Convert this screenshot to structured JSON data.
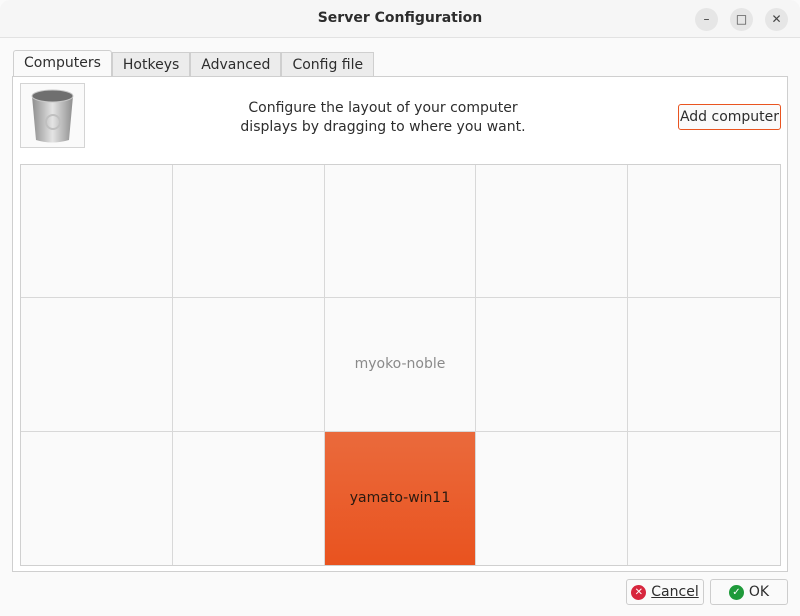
{
  "window": {
    "title": "Server Configuration"
  },
  "tabs": [
    {
      "label": "Computers",
      "active": true
    },
    {
      "label": "Hotkeys"
    },
    {
      "label": "Advanced"
    },
    {
      "label": "Config file"
    }
  ],
  "computers": {
    "instructions_line1": "Configure the layout of your computer",
    "instructions_line2": "displays by dragging to where you want.",
    "add_label": "Add computer",
    "grid": [
      [
        "",
        "",
        "",
        "",
        ""
      ],
      [
        "",
        "",
        "myoko-noble",
        "",
        ""
      ],
      [
        "",
        "",
        "yamato-win11",
        "",
        ""
      ]
    ],
    "selected": "yamato-win11",
    "accent": "#e95420"
  },
  "buttons": {
    "cancel": "Cancel",
    "ok": "OK"
  }
}
